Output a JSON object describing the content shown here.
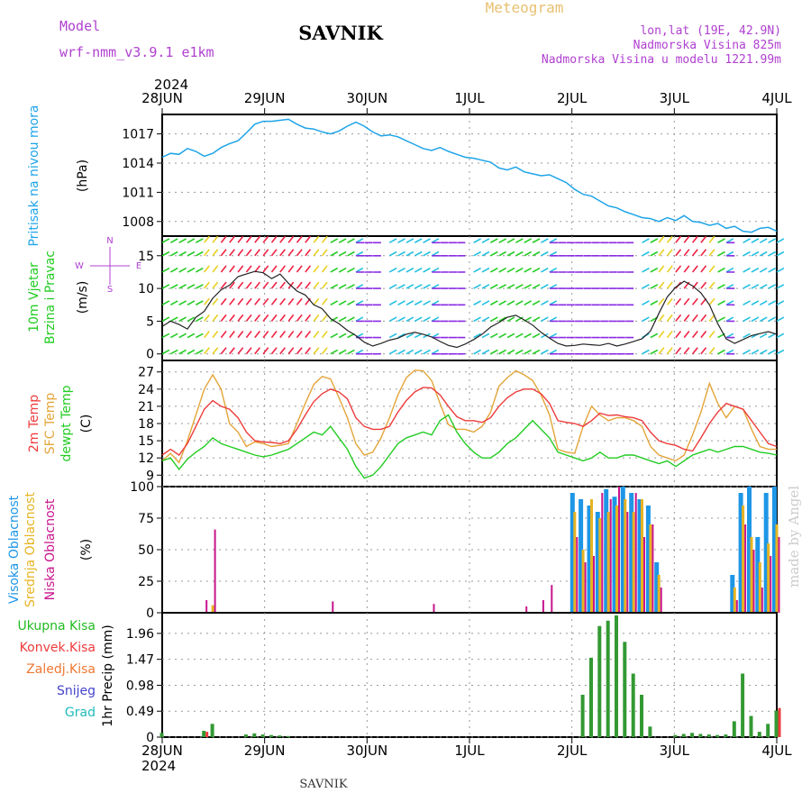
{
  "header": {
    "model_label": "Model",
    "model_name": "wrf-nmm_v3.9.1  e1km",
    "station": "SAVNIK",
    "product": "Meteogram",
    "location": "lon,lat (19E, 42.9N)",
    "elevation": "Nadmorska Visina 825m",
    "model_elevation": "Nadmorska Visina u modelu 1221.99m",
    "year_top": "2024",
    "year_bottom": "2024",
    "footer_station": "SAVNIK",
    "watermark": "made by Angel"
  },
  "colors": {
    "pressure": "#1ea4e8",
    "temp2m": "#ee3b3b",
    "sfc_temp": "#e3a539",
    "dewpoint": "#22cc22",
    "cloud_high": "#1e96e6",
    "cloud_mid": "#e6b422",
    "cloud_low": "#c8148c",
    "precip_total": "#339933",
    "precip_conv": "#ee3b3b",
    "wind_cyan": "#22c0e0",
    "wind_green": "#22cc22",
    "wind_yellow": "#e8d020",
    "wind_red": "#ee2244",
    "wind_purple": "#8a2be2",
    "wind_magenta": "#dd22dd",
    "label_purple": "#b040d0",
    "label_gold": "#e8c070"
  },
  "chart_data": [
    {
      "type": "line",
      "ylabel": "(hPa)",
      "side_label": "Pritisak na nivou mora",
      "x_ticks": [
        "28JUN",
        "29JUN",
        "30JUN",
        "1JUL",
        "2JUL",
        "3JUL",
        "4JUL"
      ],
      "y_ticks": [
        1008,
        1011,
        1014,
        1017
      ],
      "ylim": [
        1006.5,
        1019
      ],
      "grid": true,
      "series": [
        {
          "values": [
            1014.6,
            1015.0,
            1014.9,
            1015.5,
            1015.2,
            1014.7,
            1015.0,
            1015.6,
            1016.0,
            1016.3,
            1017.1,
            1018.0,
            1018.3,
            1018.3,
            1018.4,
            1018.5,
            1018.0,
            1017.6,
            1017.5,
            1017.2,
            1017.0,
            1017.3,
            1017.8,
            1018.2,
            1017.8,
            1017.2,
            1016.8,
            1016.9,
            1016.7,
            1016.3,
            1015.9,
            1015.5,
            1015.3,
            1015.6,
            1015.2,
            1014.9,
            1014.6,
            1014.5,
            1014.3,
            1014.1,
            1013.5,
            1013.3,
            1013.6,
            1013.1,
            1012.9,
            1012.7,
            1012.8,
            1012.4,
            1012.0,
            1011.3,
            1010.8,
            1010.6,
            1010.1,
            1009.6,
            1009.4,
            1009.0,
            1008.7,
            1008.4,
            1008.3,
            1008.0,
            1008.4,
            1008.1,
            1008.6,
            1008.0,
            1007.9,
            1007.6,
            1007.8,
            1007.3,
            1007.5,
            1007.0,
            1006.9,
            1007.3,
            1007.4,
            1007.0
          ]
        }
      ]
    },
    {
      "type": "line",
      "ylabel": "(m/s)",
      "side_labels": [
        "10m Vjetar",
        "Brzina i Pravac"
      ],
      "compass": [
        "N",
        "E",
        "S",
        "W"
      ],
      "y_ticks": [
        0,
        5,
        10,
        15
      ],
      "ylim": [
        -1,
        18
      ],
      "grid": true,
      "wind_speed": [
        4.2,
        5.0,
        4.5,
        3.8,
        5.6,
        6.5,
        8.5,
        9.8,
        10.5,
        11.8,
        12.2,
        12.6,
        12.4,
        11.5,
        12.2,
        10.8,
        9.6,
        9.0,
        7.5,
        6.9,
        5.4,
        4.6,
        3.6,
        2.8,
        1.8,
        1.2,
        1.6,
        2.1,
        2.4,
        3.0,
        3.3,
        3.0,
        2.6,
        1.9,
        1.3,
        1.0,
        1.5,
        2.2,
        3.0,
        4.1,
        4.8,
        5.6,
        5.9,
        5.2,
        4.4,
        3.3,
        2.4,
        1.6,
        1.2,
        1.3,
        1.5,
        1.4,
        1.3,
        1.6,
        1.2,
        1.5,
        1.9,
        2.3,
        3.5,
        6.2,
        8.7,
        10.2,
        11.1,
        10.4,
        9.3,
        7.5,
        4.6,
        2.3,
        1.6,
        2.2,
        2.8,
        3.1,
        3.4,
        3.0
      ]
    },
    {
      "type": "line",
      "ylabel": "(C)",
      "side_labels": [
        "2m Temp",
        "SFC Temp",
        "dewpt Temp"
      ],
      "y_ticks": [
        9,
        12,
        15,
        18,
        21,
        24,
        27
      ],
      "ylim": [
        7,
        29
      ],
      "grid": true,
      "series": [
        {
          "name": "2m Temp",
          "values": [
            12.5,
            13.5,
            12.5,
            14.5,
            17.5,
            20.5,
            22,
            21,
            20.5,
            19,
            16.5,
            15,
            14.8,
            14.7,
            14.5,
            15,
            17,
            19.5,
            21.8,
            23.2,
            24,
            23.5,
            22.3,
            19,
            17.5,
            17,
            17,
            17.5,
            20,
            22,
            23.5,
            24.3,
            24.2,
            23,
            21,
            19.2,
            18.5,
            18.5,
            18.2,
            19,
            21,
            22.5,
            23.5,
            24,
            24,
            23.2,
            21.5,
            18.5,
            18.2,
            18,
            17.5,
            18.5,
            19.8,
            19.4,
            19.5,
            19.2,
            19,
            18.5,
            16.5,
            15,
            14.5,
            14.2,
            13.5,
            13.2,
            15.5,
            18,
            20,
            21.5,
            21,
            20.5,
            18.5,
            16.5,
            14.5,
            14
          ]
        },
        {
          "name": "SFC Temp",
          "values": [
            11.5,
            12.8,
            11.2,
            15,
            19.5,
            24,
            26.5,
            24,
            18,
            16.5,
            14,
            14.8,
            14.5,
            14,
            14.2,
            14.5,
            18,
            21.5,
            24.8,
            26.2,
            25.8,
            22.5,
            19,
            14.5,
            12.5,
            13,
            15.5,
            19,
            23,
            26,
            27.3,
            27.2,
            25.5,
            21.5,
            17.8,
            17,
            17,
            16.5,
            17.5,
            20,
            24.5,
            26,
            27.2,
            26.5,
            25.5,
            23,
            19.5,
            13.5,
            13,
            12.8,
            17.5,
            21,
            19.5,
            18.5,
            19,
            19,
            18.5,
            17.5,
            14,
            12.5,
            12,
            11.5,
            12.5,
            16,
            20,
            25,
            21.5,
            19,
            21,
            20.5,
            17,
            14,
            13.5,
            13.5
          ]
        },
        {
          "name": "dewpt Temp",
          "values": [
            11.5,
            12,
            10,
            11.8,
            13,
            14,
            15.5,
            14.5,
            14,
            13.5,
            13,
            12.5,
            12.2,
            12.5,
            13,
            13.5,
            14.5,
            15.5,
            16.5,
            16,
            17.5,
            15.5,
            13.5,
            10.5,
            8.5,
            9,
            10.5,
            12.5,
            14.5,
            15.5,
            16,
            16.5,
            16,
            18.5,
            19.5,
            16.5,
            14.5,
            13,
            12,
            12,
            13,
            14.5,
            15.5,
            17,
            18.5,
            17,
            15.5,
            13,
            12.5,
            12,
            11.5,
            12,
            13,
            12,
            12,
            12.5,
            12.5,
            12,
            11.5,
            11,
            11.5,
            10.5,
            11.5,
            12.5,
            13,
            13.5,
            13,
            13.5,
            14,
            14,
            13.5,
            13,
            12.8,
            12.5
          ]
        }
      ]
    },
    {
      "type": "bar",
      "ylabel": "(%)",
      "side_labels": [
        "Visoka Oblacnost",
        "Srednja Oblacnost",
        "Niska Oblacnost"
      ],
      "y_ticks": [
        0,
        25,
        50,
        75,
        100
      ],
      "ylim": [
        0,
        100
      ],
      "grid": true,
      "series": [
        {
          "name": "Visoka Oblacnost",
          "values": [
            0,
            0,
            0,
            0,
            0,
            0,
            0,
            0,
            0,
            0,
            0,
            0,
            0,
            0,
            0,
            0,
            0,
            0,
            0,
            0,
            0,
            0,
            0,
            0,
            0,
            0,
            0,
            0,
            0,
            0,
            0,
            0,
            0,
            0,
            0,
            0,
            0,
            0,
            0,
            0,
            0,
            0,
            0,
            0,
            0,
            0,
            0,
            0,
            0,
            95,
            90,
            85,
            80,
            98,
            92,
            100,
            95,
            90,
            85,
            40,
            0,
            0,
            0,
            0,
            0,
            0,
            0,
            0,
            30,
            95,
            100,
            60,
            95,
            100
          ]
        },
        {
          "name": "Srednja Oblacnost",
          "values": [
            0,
            0,
            0,
            0,
            0,
            0,
            6,
            0,
            0,
            0,
            0,
            0,
            0,
            0,
            0,
            0,
            0,
            0,
            0,
            0,
            0,
            0,
            0,
            0,
            0,
            0,
            0,
            0,
            0,
            0,
            0,
            0,
            0,
            0,
            0,
            0,
            0,
            0,
            0,
            0,
            0,
            0,
            0,
            0,
            0,
            0,
            0,
            0,
            0,
            80,
            50,
            90,
            75,
            80,
            85,
            90,
            80,
            90,
            70,
            30,
            0,
            0,
            0,
            0,
            0,
            0,
            0,
            0,
            20,
            85,
            60,
            40,
            55,
            70
          ]
        },
        {
          "name": "Niska Oblacnost",
          "values": [
            0,
            0,
            0,
            0,
            0,
            10,
            66,
            0,
            0,
            0,
            0,
            0,
            0,
            0,
            0,
            0,
            0,
            0,
            0,
            0,
            9,
            0,
            0,
            0,
            0,
            0,
            0,
            0,
            0,
            0,
            0,
            0,
            7,
            0,
            0,
            0,
            0,
            0,
            0,
            0,
            0,
            0,
            0,
            5,
            0,
            10,
            22,
            0,
            0,
            60,
            40,
            45,
            95,
            90,
            100,
            80,
            95,
            60,
            70,
            20,
            0,
            0,
            0,
            0,
            0,
            0,
            0,
            0,
            10,
            70,
            50,
            20,
            45,
            60
          ]
        }
      ]
    },
    {
      "type": "bar",
      "ylabel": "1hr Precip (mm)",
      "side_labels": [
        "Ukupna Kisa",
        "Konvek.Kisa",
        "Zaledj.Kisa",
        "Snijeg",
        "Grad"
      ],
      "x_ticks": [
        "28JUN",
        "29JUN",
        "30JUN",
        "1JUL",
        "2JUL",
        "3JUL",
        "4JUL"
      ],
      "y_ticks": [
        0,
        0.49,
        0.98,
        1.47,
        1.96
      ],
      "ylim": [
        0,
        2.35
      ],
      "grid": true,
      "series": [
        {
          "name": "Ukupna Kisa",
          "values": [
            0.08,
            0,
            0,
            0,
            0,
            0.12,
            0.25,
            0,
            0,
            0,
            0.05,
            0.07,
            0.05,
            0.04,
            0.03,
            0.02,
            0,
            0,
            0,
            0,
            0,
            0,
            0,
            0,
            0,
            0,
            0,
            0,
            0,
            0,
            0,
            0,
            0,
            0,
            0,
            0,
            0,
            0,
            0,
            0,
            0,
            0,
            0,
            0,
            0,
            0,
            0,
            0,
            0,
            0,
            0.8,
            1.5,
            2.1,
            2.2,
            2.3,
            1.8,
            1.2,
            0.8,
            0.2,
            0,
            0,
            0.04,
            0.06,
            0.08,
            0.06,
            0.05,
            0.04,
            0.05,
            0.3,
            1.2,
            0.4,
            0.1,
            0.25,
            0.5
          ]
        },
        {
          "name": "Konvek.Kisa",
          "values": [
            0,
            0,
            0,
            0,
            0,
            0.1,
            0,
            0,
            0,
            0,
            0,
            0,
            0,
            0,
            0,
            0,
            0,
            0,
            0,
            0,
            0,
            0,
            0,
            0,
            0,
            0,
            0,
            0,
            0,
            0,
            0,
            0,
            0,
            0,
            0,
            0,
            0,
            0,
            0,
            0,
            0,
            0,
            0,
            0,
            0,
            0,
            0,
            0,
            0,
            0,
            0,
            0,
            0,
            0,
            0,
            0,
            0,
            0,
            0,
            0,
            0,
            0,
            0,
            0,
            0,
            0,
            0,
            0,
            0,
            0,
            0,
            0,
            0,
            0.55
          ]
        }
      ]
    }
  ]
}
